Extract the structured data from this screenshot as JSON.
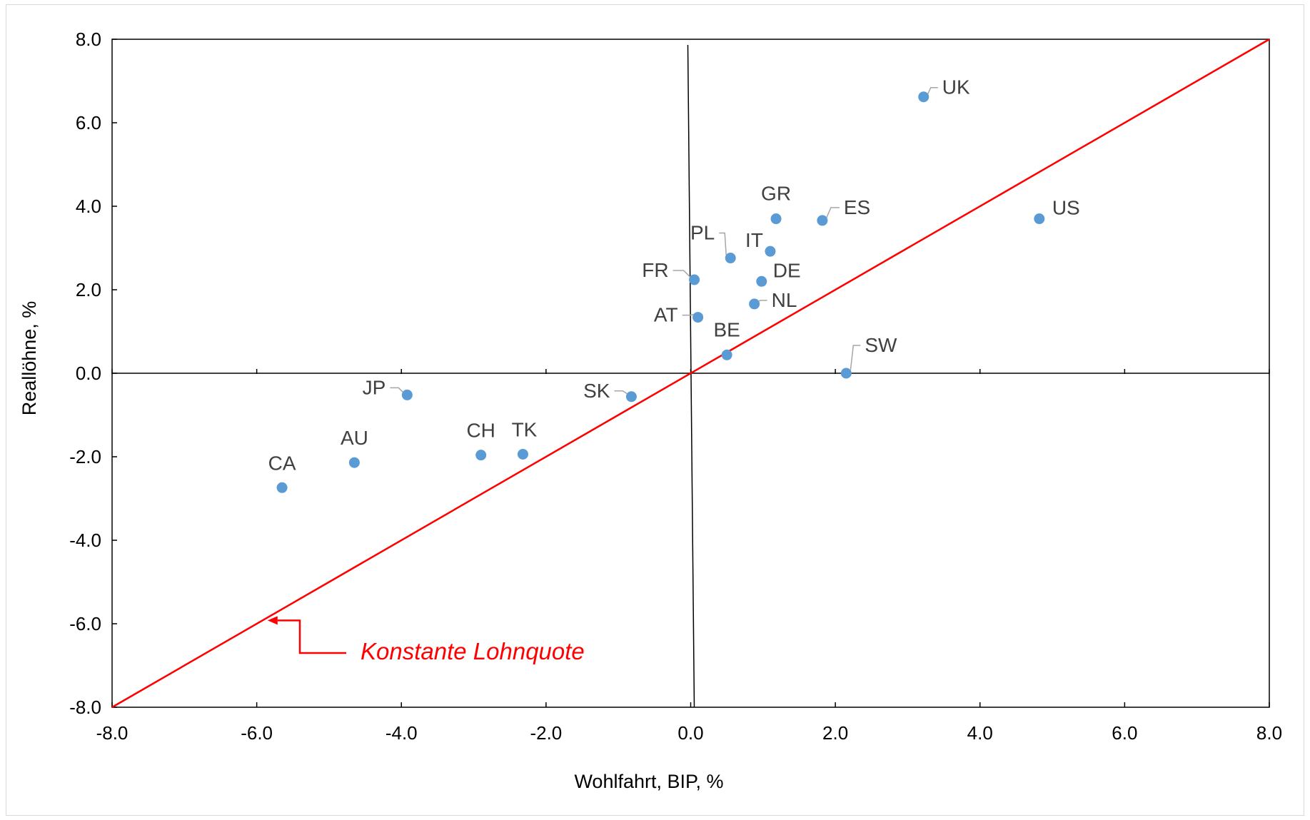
{
  "chart_data": {
    "type": "scatter",
    "title": "",
    "xlabel": "Wohlfahrt, BIP, %",
    "ylabel": "Reallöhne, %",
    "xlim": [
      -8.0,
      8.0
    ],
    "ylim": [
      -8.0,
      8.0
    ],
    "x_ticks": [
      "-8.0",
      "-6.0",
      "-4.0",
      "-2.0",
      "0.0",
      "2.0",
      "4.0",
      "6.0",
      "8.0"
    ],
    "y_ticks": [
      "8.0",
      "6.0",
      "4.0",
      "2.0",
      "0.0",
      "-2.0",
      "-4.0",
      "-6.0",
      "-8.0"
    ],
    "grid": false,
    "legend": "none",
    "colors": {
      "points": "#5b9bd5",
      "reference_line": "#ff0000",
      "axes": "#000000",
      "highlight_label": "#ff0000",
      "label": "#404040"
    },
    "points": [
      {
        "label": "UK",
        "x": 3.22,
        "y": 6.62
      },
      {
        "label": "US",
        "x": 4.82,
        "y": 3.7
      },
      {
        "label": "GR",
        "x": 1.18,
        "y": 3.7
      },
      {
        "label": "ES",
        "x": 1.82,
        "y": 3.66
      },
      {
        "label": "IT",
        "x": 1.1,
        "y": 2.92
      },
      {
        "label": "PL",
        "x": 0.55,
        "y": 2.76
      },
      {
        "label": "FR",
        "x": 0.05,
        "y": 2.24
      },
      {
        "label": "DE",
        "x": 0.98,
        "y": 2.2
      },
      {
        "label": "NL",
        "x": 0.88,
        "y": 1.66
      },
      {
        "label": "AT",
        "x": 0.1,
        "y": 1.34,
        "highlight": true
      },
      {
        "label": "BE",
        "x": 0.5,
        "y": 0.44
      },
      {
        "label": "SW",
        "x": 2.15,
        "y": 0.0
      },
      {
        "label": "SK",
        "x": -0.82,
        "y": -0.56
      },
      {
        "label": "JP",
        "x": -3.92,
        "y": -0.52
      },
      {
        "label": "TK",
        "x": -2.32,
        "y": -1.94
      },
      {
        "label": "CH",
        "x": -2.9,
        "y": -1.96
      },
      {
        "label": "AU",
        "x": -4.65,
        "y": -2.14
      },
      {
        "label": "CA",
        "x": -5.65,
        "y": -2.74
      }
    ],
    "reference_line": {
      "label": "Konstante Lohnquote",
      "from": [
        -8.0,
        -8.0
      ],
      "to": [
        8.0,
        8.0
      ]
    }
  }
}
